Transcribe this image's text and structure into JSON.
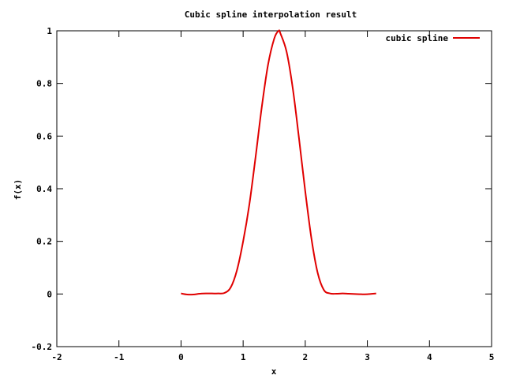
{
  "chart_data": {
    "type": "line",
    "title": "Cubic spline interpolation result",
    "xlabel": "x",
    "ylabel": "f(x)",
    "xlim": [
      -2,
      5
    ],
    "ylim": [
      -0.2,
      1
    ],
    "xticks": [
      -2,
      -1,
      0,
      1,
      2,
      3,
      4,
      5
    ],
    "yticks": [
      -0.2,
      0,
      0.2,
      0.4,
      0.6,
      0.8,
      1
    ],
    "xtick_labels": [
      "-2",
      "-1",
      "0",
      "1",
      "2",
      "3",
      "4",
      "5"
    ],
    "ytick_labels": [
      "-0.2",
      "0",
      "0.2",
      "0.4",
      "0.6",
      "0.8",
      "1"
    ],
    "grid": false,
    "legend_position": "top-right",
    "series": [
      {
        "name": "cubic spline",
        "color": "#e00000",
        "x": [
          0,
          0.1,
          0.2,
          0.3,
          0.4,
          0.5,
          0.6,
          0.7,
          0.8,
          0.9,
          1.0,
          1.1,
          1.2,
          1.3,
          1.4,
          1.5,
          1.571,
          1.6,
          1.7,
          1.8,
          1.9,
          2.0,
          2.1,
          2.2,
          2.3,
          2.4,
          2.5,
          2.6,
          2.7,
          2.8,
          2.9,
          3.0,
          3.1416
        ],
        "y": [
          0.002,
          -0.002,
          -0.002,
          0.001,
          0.002,
          0.002,
          0.002,
          0.004,
          0.025,
          0.09,
          0.2,
          0.34,
          0.52,
          0.71,
          0.87,
          0.97,
          1.0,
          0.99,
          0.92,
          0.78,
          0.59,
          0.39,
          0.21,
          0.08,
          0.015,
          0.002,
          0.001,
          0.002,
          0.001,
          0.0,
          -0.001,
          -0.001,
          0.002
        ]
      }
    ]
  }
}
